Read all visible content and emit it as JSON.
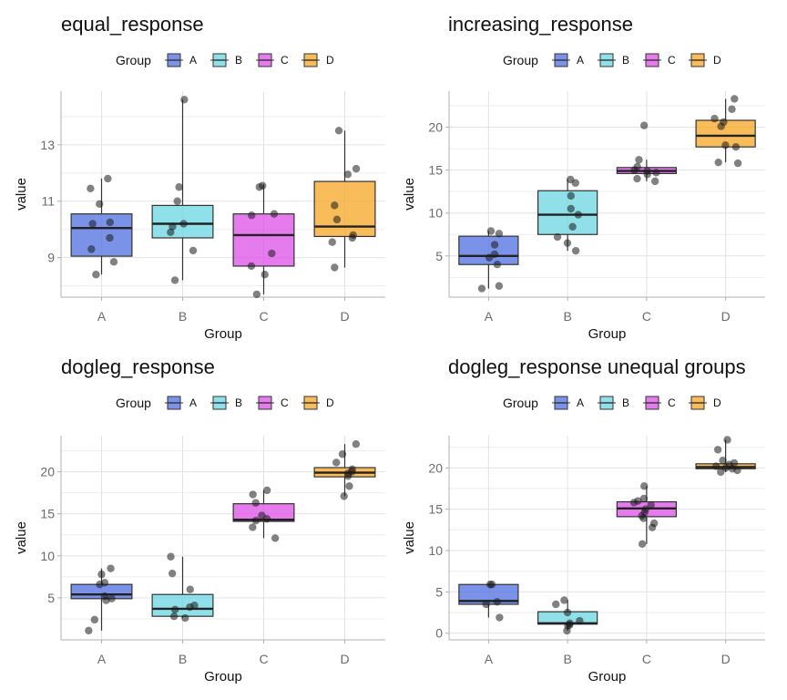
{
  "colors": {
    "A": "#4e6ee0",
    "B": "#6ad6e0",
    "C": "#de4fe8",
    "D": "#f5a623",
    "grid": "#e3e3e3",
    "axis": "#b0b0b0",
    "tick_text": "#6b6b6b",
    "point": "#1a1a1a",
    "box_line": "#333333"
  },
  "chart_data": [
    {
      "type": "box",
      "title": "equal_response",
      "xlabel": "Group",
      "ylabel": "value",
      "legend_title": "Group",
      "legend_placement": "top",
      "categories": [
        "A",
        "B",
        "C",
        "D"
      ],
      "ylim": [
        7.6,
        14.9
      ],
      "yticks": [
        9,
        11,
        13
      ],
      "ytick_labels": [
        "9",
        "11",
        "13"
      ],
      "grid": true,
      "boxes": [
        {
          "group": "A",
          "min": 8.4,
          "q1": 9.05,
          "median": 10.05,
          "q3": 10.55,
          "max": 11.8
        },
        {
          "group": "B",
          "min": 8.2,
          "q1": 9.7,
          "median": 10.2,
          "q3": 10.85,
          "max": 14.6
        },
        {
          "group": "C",
          "min": 7.7,
          "q1": 8.7,
          "median": 9.8,
          "q3": 10.55,
          "max": 11.6
        },
        {
          "group": "D",
          "min": 8.65,
          "q1": 9.75,
          "median": 10.1,
          "q3": 11.7,
          "max": 13.5
        }
      ],
      "points": [
        {
          "group": "A",
          "values": [
            11.8,
            11.45,
            10.9,
            10.25,
            10.2,
            9.7,
            9.3,
            8.85,
            8.4
          ]
        },
        {
          "group": "B",
          "values": [
            14.6,
            11.5,
            11.0,
            10.2,
            10.1,
            9.9,
            9.25,
            8.2
          ]
        },
        {
          "group": "C",
          "values": [
            11.55,
            11.5,
            10.55,
            10.5,
            9.15,
            8.7,
            8.4,
            7.7
          ]
        },
        {
          "group": "D",
          "values": [
            13.5,
            12.15,
            11.95,
            10.85,
            10.35,
            9.8,
            9.7,
            9.55,
            8.65
          ]
        }
      ]
    },
    {
      "type": "box",
      "title": "increasing_response",
      "xlabel": "Group",
      "ylabel": "value",
      "legend_title": "Group",
      "legend_placement": "top",
      "categories": [
        "A",
        "B",
        "C",
        "D"
      ],
      "ylim": [
        0.2,
        24.2
      ],
      "yticks": [
        5,
        10,
        15,
        20
      ],
      "ytick_labels": [
        "5",
        "10",
        "15",
        "20"
      ],
      "grid": true,
      "boxes": [
        {
          "group": "A",
          "min": 1.2,
          "q1": 4.0,
          "median": 5.0,
          "q3": 7.3,
          "max": 7.9
        },
        {
          "group": "B",
          "min": 5.6,
          "q1": 7.5,
          "median": 9.8,
          "q3": 12.6,
          "max": 13.9
        },
        {
          "group": "C",
          "min": 13.7,
          "q1": 14.6,
          "median": 14.9,
          "q3": 15.3,
          "max": 16.2
        },
        {
          "group": "D",
          "min": 15.9,
          "q1": 17.7,
          "median": 19.0,
          "q3": 20.8,
          "max": 23.3
        }
      ],
      "points": [
        {
          "group": "A",
          "values": [
            7.9,
            7.6,
            6.3,
            5.2,
            4.8,
            4.0,
            1.5,
            1.2
          ]
        },
        {
          "group": "B",
          "values": [
            13.9,
            13.5,
            12.0,
            10.5,
            9.8,
            8.4,
            7.2,
            6.5,
            5.6
          ]
        },
        {
          "group": "C",
          "values": [
            20.2,
            16.2,
            15.4,
            15.0,
            14.9,
            14.7,
            14.5,
            14.0,
            13.7
          ]
        },
        {
          "group": "D",
          "values": [
            23.3,
            22.1,
            21.0,
            20.6,
            20.1,
            17.9,
            17.7,
            15.9,
            15.8
          ]
        }
      ]
    },
    {
      "type": "box",
      "title": "dogleg_response",
      "xlabel": "Group",
      "ylabel": "value",
      "legend_title": "Group",
      "legend_placement": "top",
      "categories": [
        "A",
        "B",
        "C",
        "D"
      ],
      "ylim": [
        0.0,
        24.3
      ],
      "yticks": [
        5,
        10,
        15,
        20
      ],
      "ytick_labels": [
        "5",
        "10",
        "15",
        "20"
      ],
      "grid": true,
      "boxes": [
        {
          "group": "A",
          "min": 1.1,
          "q1": 4.9,
          "median": 5.4,
          "q3": 6.6,
          "max": 8.5
        },
        {
          "group": "B",
          "min": 2.6,
          "q1": 2.8,
          "median": 3.7,
          "q3": 5.4,
          "max": 9.9
        },
        {
          "group": "C",
          "min": 12.1,
          "q1": 14.1,
          "median": 14.3,
          "q3": 16.2,
          "max": 17.8
        },
        {
          "group": "D",
          "min": 17.1,
          "q1": 19.4,
          "median": 19.9,
          "q3": 20.5,
          "max": 23.3
        }
      ],
      "points": [
        {
          "group": "A",
          "values": [
            8.5,
            7.8,
            6.8,
            6.6,
            5.2,
            4.9,
            4.7,
            2.4,
            1.1
          ]
        },
        {
          "group": "B",
          "values": [
            9.9,
            7.9,
            6.0,
            4.1,
            3.9,
            3.6,
            2.8,
            2.6
          ]
        },
        {
          "group": "C",
          "values": [
            17.8,
            17.3,
            16.3,
            14.8,
            14.4,
            14.2,
            13.4,
            12.1
          ]
        },
        {
          "group": "D",
          "values": [
            23.3,
            22.1,
            21.1,
            20.3,
            20.0,
            19.8,
            19.5,
            18.3,
            17.1
          ]
        }
      ]
    },
    {
      "type": "box",
      "title": "dogleg_response unequal groups",
      "xlabel": "Group",
      "ylabel": "value",
      "legend_title": "Group",
      "legend_placement": "top",
      "categories": [
        "A",
        "B",
        "C",
        "D"
      ],
      "ylim": [
        -0.8,
        23.9
      ],
      "yticks": [
        0,
        5,
        10,
        15,
        20
      ],
      "ytick_labels": [
        "0",
        "5",
        "10",
        "15",
        "20"
      ],
      "grid": true,
      "boxes": [
        {
          "group": "A",
          "min": 1.9,
          "q1": 3.5,
          "median": 3.9,
          "q3": 5.9,
          "max": 5.9
        },
        {
          "group": "B",
          "min": 0.3,
          "q1": 1.1,
          "median": 1.2,
          "q3": 2.6,
          "max": 4.0
        },
        {
          "group": "C",
          "min": 10.8,
          "q1": 14.1,
          "median": 15.1,
          "q3": 15.9,
          "max": 17.8
        },
        {
          "group": "D",
          "min": 19.5,
          "q1": 19.9,
          "median": 20.1,
          "q3": 20.5,
          "max": 23.4
        }
      ],
      "points": [
        {
          "group": "A",
          "values": [
            5.9,
            5.9,
            3.8,
            3.5,
            1.9
          ]
        },
        {
          "group": "B",
          "values": [
            4.0,
            3.5,
            2.5,
            1.5,
            1.2,
            1.0,
            0.9,
            0.3
          ]
        },
        {
          "group": "C",
          "values": [
            17.8,
            16.3,
            16.0,
            15.8,
            15.5,
            15.0,
            14.6,
            14.2,
            13.9,
            13.3,
            12.8,
            10.8
          ]
        },
        {
          "group": "D",
          "values": [
            23.4,
            22.2,
            20.9,
            20.6,
            20.4,
            20.2,
            20.0,
            19.9,
            19.7,
            19.5
          ]
        }
      ]
    }
  ]
}
